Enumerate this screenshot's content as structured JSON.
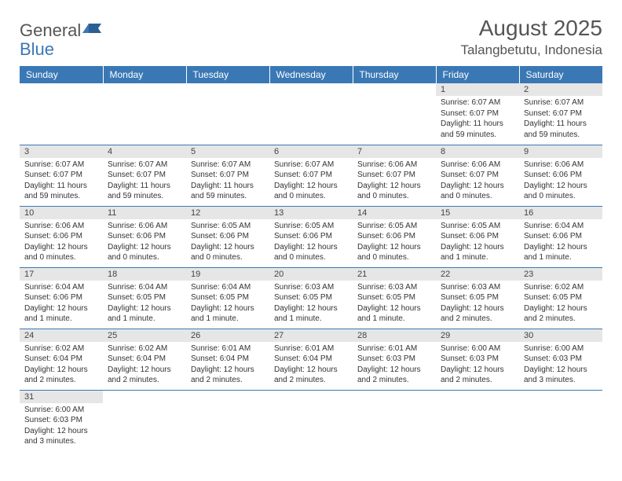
{
  "logo": {
    "text1": "General",
    "text2": "Blue"
  },
  "title": "August 2025",
  "location": "Talangbetutu, Indonesia",
  "colors": {
    "header_bg": "#3a78b5",
    "header_text": "#ffffff",
    "daynum_bg": "#e6e6e6",
    "border": "#3a78b5",
    "page_bg": "#ffffff",
    "text": "#333333"
  },
  "weekdays": [
    "Sunday",
    "Monday",
    "Tuesday",
    "Wednesday",
    "Thursday",
    "Friday",
    "Saturday"
  ],
  "weeks": [
    [
      {
        "n": "",
        "sr": "",
        "ss": "",
        "dl": ""
      },
      {
        "n": "",
        "sr": "",
        "ss": "",
        "dl": ""
      },
      {
        "n": "",
        "sr": "",
        "ss": "",
        "dl": ""
      },
      {
        "n": "",
        "sr": "",
        "ss": "",
        "dl": ""
      },
      {
        "n": "",
        "sr": "",
        "ss": "",
        "dl": ""
      },
      {
        "n": "1",
        "sr": "Sunrise: 6:07 AM",
        "ss": "Sunset: 6:07 PM",
        "dl": "Daylight: 11 hours and 59 minutes."
      },
      {
        "n": "2",
        "sr": "Sunrise: 6:07 AM",
        "ss": "Sunset: 6:07 PM",
        "dl": "Daylight: 11 hours and 59 minutes."
      }
    ],
    [
      {
        "n": "3",
        "sr": "Sunrise: 6:07 AM",
        "ss": "Sunset: 6:07 PM",
        "dl": "Daylight: 11 hours and 59 minutes."
      },
      {
        "n": "4",
        "sr": "Sunrise: 6:07 AM",
        "ss": "Sunset: 6:07 PM",
        "dl": "Daylight: 11 hours and 59 minutes."
      },
      {
        "n": "5",
        "sr": "Sunrise: 6:07 AM",
        "ss": "Sunset: 6:07 PM",
        "dl": "Daylight: 11 hours and 59 minutes."
      },
      {
        "n": "6",
        "sr": "Sunrise: 6:07 AM",
        "ss": "Sunset: 6:07 PM",
        "dl": "Daylight: 12 hours and 0 minutes."
      },
      {
        "n": "7",
        "sr": "Sunrise: 6:06 AM",
        "ss": "Sunset: 6:07 PM",
        "dl": "Daylight: 12 hours and 0 minutes."
      },
      {
        "n": "8",
        "sr": "Sunrise: 6:06 AM",
        "ss": "Sunset: 6:07 PM",
        "dl": "Daylight: 12 hours and 0 minutes."
      },
      {
        "n": "9",
        "sr": "Sunrise: 6:06 AM",
        "ss": "Sunset: 6:06 PM",
        "dl": "Daylight: 12 hours and 0 minutes."
      }
    ],
    [
      {
        "n": "10",
        "sr": "Sunrise: 6:06 AM",
        "ss": "Sunset: 6:06 PM",
        "dl": "Daylight: 12 hours and 0 minutes."
      },
      {
        "n": "11",
        "sr": "Sunrise: 6:06 AM",
        "ss": "Sunset: 6:06 PM",
        "dl": "Daylight: 12 hours and 0 minutes."
      },
      {
        "n": "12",
        "sr": "Sunrise: 6:05 AM",
        "ss": "Sunset: 6:06 PM",
        "dl": "Daylight: 12 hours and 0 minutes."
      },
      {
        "n": "13",
        "sr": "Sunrise: 6:05 AM",
        "ss": "Sunset: 6:06 PM",
        "dl": "Daylight: 12 hours and 0 minutes."
      },
      {
        "n": "14",
        "sr": "Sunrise: 6:05 AM",
        "ss": "Sunset: 6:06 PM",
        "dl": "Daylight: 12 hours and 0 minutes."
      },
      {
        "n": "15",
        "sr": "Sunrise: 6:05 AM",
        "ss": "Sunset: 6:06 PM",
        "dl": "Daylight: 12 hours and 1 minute."
      },
      {
        "n": "16",
        "sr": "Sunrise: 6:04 AM",
        "ss": "Sunset: 6:06 PM",
        "dl": "Daylight: 12 hours and 1 minute."
      }
    ],
    [
      {
        "n": "17",
        "sr": "Sunrise: 6:04 AM",
        "ss": "Sunset: 6:06 PM",
        "dl": "Daylight: 12 hours and 1 minute."
      },
      {
        "n": "18",
        "sr": "Sunrise: 6:04 AM",
        "ss": "Sunset: 6:05 PM",
        "dl": "Daylight: 12 hours and 1 minute."
      },
      {
        "n": "19",
        "sr": "Sunrise: 6:04 AM",
        "ss": "Sunset: 6:05 PM",
        "dl": "Daylight: 12 hours and 1 minute."
      },
      {
        "n": "20",
        "sr": "Sunrise: 6:03 AM",
        "ss": "Sunset: 6:05 PM",
        "dl": "Daylight: 12 hours and 1 minute."
      },
      {
        "n": "21",
        "sr": "Sunrise: 6:03 AM",
        "ss": "Sunset: 6:05 PM",
        "dl": "Daylight: 12 hours and 1 minute."
      },
      {
        "n": "22",
        "sr": "Sunrise: 6:03 AM",
        "ss": "Sunset: 6:05 PM",
        "dl": "Daylight: 12 hours and 2 minutes."
      },
      {
        "n": "23",
        "sr": "Sunrise: 6:02 AM",
        "ss": "Sunset: 6:05 PM",
        "dl": "Daylight: 12 hours and 2 minutes."
      }
    ],
    [
      {
        "n": "24",
        "sr": "Sunrise: 6:02 AM",
        "ss": "Sunset: 6:04 PM",
        "dl": "Daylight: 12 hours and 2 minutes."
      },
      {
        "n": "25",
        "sr": "Sunrise: 6:02 AM",
        "ss": "Sunset: 6:04 PM",
        "dl": "Daylight: 12 hours and 2 minutes."
      },
      {
        "n": "26",
        "sr": "Sunrise: 6:01 AM",
        "ss": "Sunset: 6:04 PM",
        "dl": "Daylight: 12 hours and 2 minutes."
      },
      {
        "n": "27",
        "sr": "Sunrise: 6:01 AM",
        "ss": "Sunset: 6:04 PM",
        "dl": "Daylight: 12 hours and 2 minutes."
      },
      {
        "n": "28",
        "sr": "Sunrise: 6:01 AM",
        "ss": "Sunset: 6:03 PM",
        "dl": "Daylight: 12 hours and 2 minutes."
      },
      {
        "n": "29",
        "sr": "Sunrise: 6:00 AM",
        "ss": "Sunset: 6:03 PM",
        "dl": "Daylight: 12 hours and 2 minutes."
      },
      {
        "n": "30",
        "sr": "Sunrise: 6:00 AM",
        "ss": "Sunset: 6:03 PM",
        "dl": "Daylight: 12 hours and 3 minutes."
      }
    ],
    [
      {
        "n": "31",
        "sr": "Sunrise: 6:00 AM",
        "ss": "Sunset: 6:03 PM",
        "dl": "Daylight: 12 hours and 3 minutes."
      },
      {
        "n": "",
        "sr": "",
        "ss": "",
        "dl": ""
      },
      {
        "n": "",
        "sr": "",
        "ss": "",
        "dl": ""
      },
      {
        "n": "",
        "sr": "",
        "ss": "",
        "dl": ""
      },
      {
        "n": "",
        "sr": "",
        "ss": "",
        "dl": ""
      },
      {
        "n": "",
        "sr": "",
        "ss": "",
        "dl": ""
      },
      {
        "n": "",
        "sr": "",
        "ss": "",
        "dl": ""
      }
    ]
  ]
}
